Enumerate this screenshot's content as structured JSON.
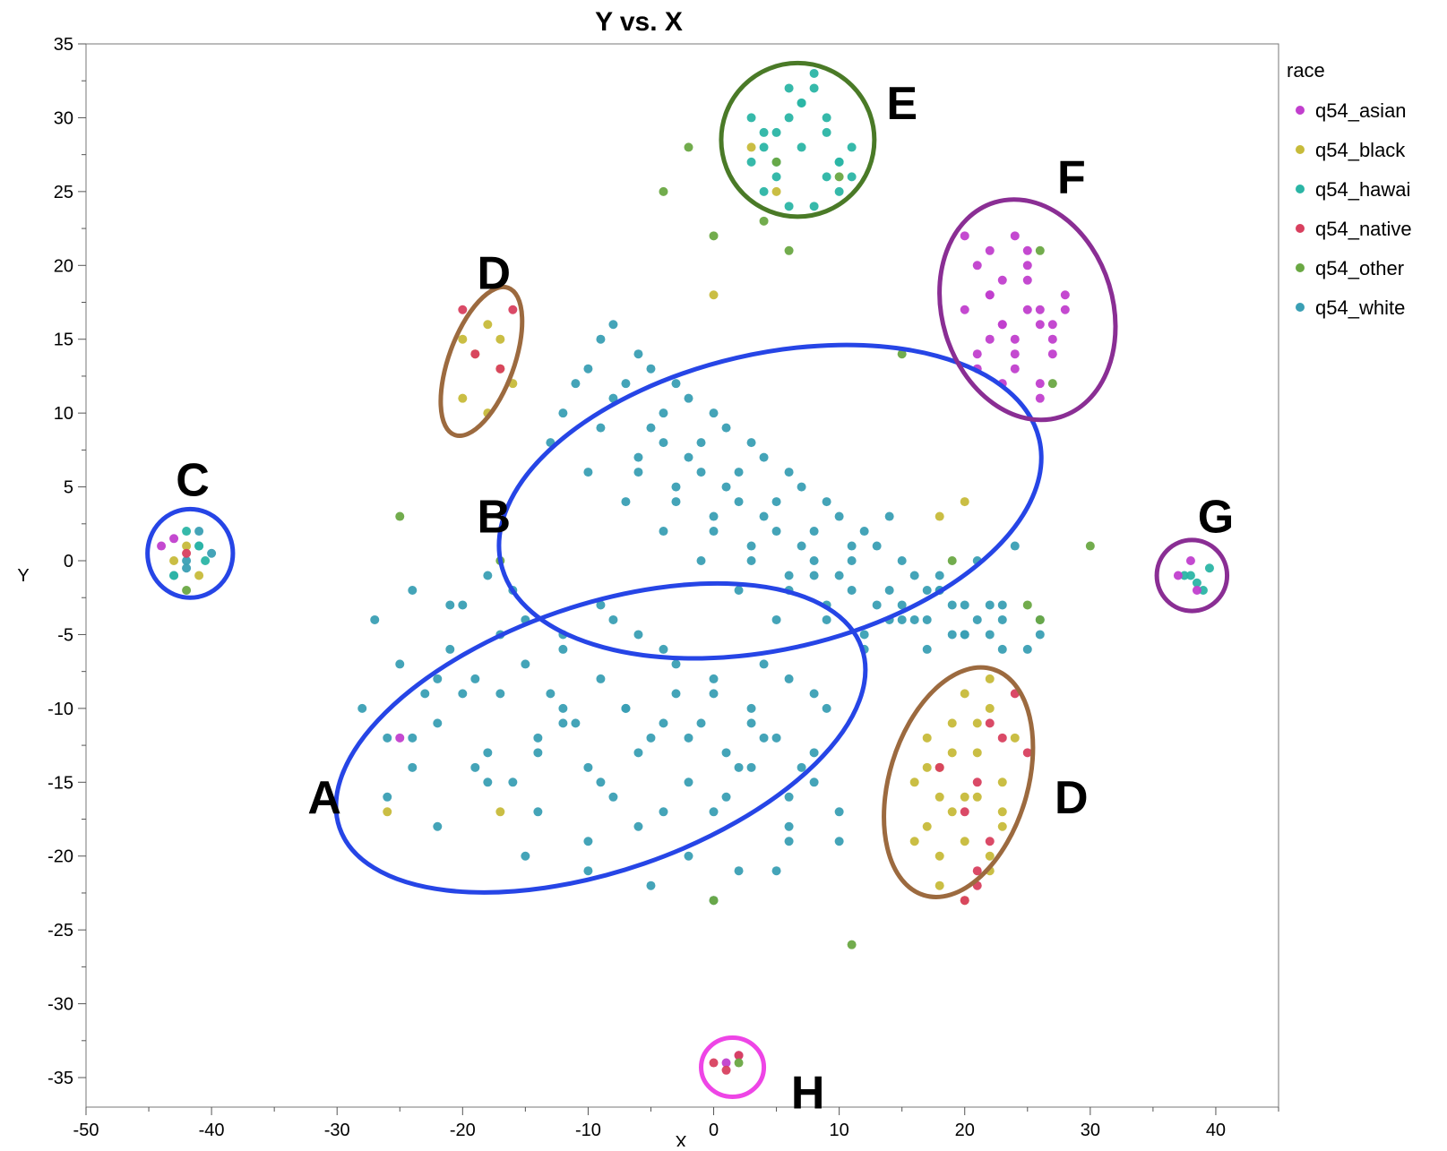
{
  "chart_data": {
    "type": "scatter",
    "title": "Y vs. X",
    "xlabel": "X",
    "ylabel": "Y",
    "xlim": [
      -50,
      45
    ],
    "ylim": [
      -37,
      35
    ],
    "x_ticks": [
      -50,
      -40,
      -30,
      -20,
      -10,
      0,
      10,
      20,
      30,
      40
    ],
    "y_ticks": [
      35,
      30,
      25,
      20,
      15,
      10,
      5,
      0,
      -5,
      -10,
      -15,
      -20,
      -25,
      -30,
      -35
    ],
    "grid": false,
    "legend": {
      "title": "race",
      "placement": "right",
      "entries": [
        "q54_asian",
        "q54_black",
        "q54_hawai",
        "q54_native",
        "q54_other",
        "q54_white"
      ]
    },
    "colors": {
      "q54_asian": "#c13fcd",
      "q54_black": "#c7bb3a",
      "q54_hawai": "#2bb5a5",
      "q54_native": "#d8405f",
      "q54_other": "#6aa843",
      "q54_white": "#3a9fb4"
    },
    "series": [
      {
        "name": "q54_white",
        "x": [
          -28,
          -26,
          -24,
          -22,
          -20,
          -18,
          -16,
          -14,
          -12,
          -10,
          -8,
          -6,
          -4,
          -2,
          0,
          2,
          4,
          6,
          8,
          -25,
          -23,
          -21,
          -19,
          -17,
          -15,
          -13,
          -11,
          -9,
          -7,
          -5,
          -3,
          -1,
          1,
          3,
          5,
          7,
          -27,
          -24,
          -21,
          -18,
          -15,
          -12,
          -9,
          -6,
          -3,
          0,
          3,
          6,
          9,
          -26,
          -22,
          -18,
          -14,
          -10,
          -6,
          -2,
          2,
          6,
          10,
          -20,
          -16,
          -12,
          -8,
          -4,
          0,
          4,
          8,
          -24,
          -19,
          -14,
          -9,
          -4,
          1,
          6,
          -22,
          -17,
          -12,
          -7,
          -2,
          3,
          8,
          -15,
          -10,
          -5,
          0,
          5,
          10,
          -42,
          -41,
          -43,
          -40,
          -42,
          -41,
          -13,
          -10,
          -7,
          -4,
          -1,
          2,
          5,
          8,
          11,
          14,
          17,
          20,
          23,
          26,
          -12,
          -9,
          -6,
          -3,
          0,
          3,
          6,
          9,
          12,
          15,
          18,
          21,
          24,
          -11,
          -8,
          -5,
          -2,
          1,
          4,
          7,
          10,
          13,
          16,
          19,
          22,
          -10,
          -7,
          -4,
          -1,
          2,
          5,
          8,
          11,
          14,
          17,
          20,
          23,
          26,
          -9,
          -6,
          -3,
          0,
          3,
          6,
          9,
          12,
          15,
          18,
          21,
          -8,
          -5,
          -2,
          1,
          4,
          7,
          10,
          13,
          16,
          19,
          22,
          25,
          -6,
          -3,
          0,
          3,
          6,
          9,
          12,
          15,
          18,
          -4,
          -1,
          2,
          5,
          8,
          11,
          14,
          17,
          20,
          23
        ],
        "y": [
          -10,
          -12,
          -14,
          -11,
          -9,
          -13,
          -15,
          -12,
          -10,
          -14,
          -16,
          -13,
          -11,
          -15,
          -17,
          -14,
          -12,
          -16,
          -13,
          -7,
          -9,
          -6,
          -8,
          -5,
          -7,
          -9,
          -11,
          -8,
          -10,
          -12,
          -9,
          -11,
          -13,
          -10,
          -12,
          -14,
          -4,
          -2,
          -3,
          -1,
          -4,
          -6,
          -3,
          -5,
          -7,
          -9,
          -11,
          -8,
          -10,
          -16,
          -18,
          -15,
          -17,
          -19,
          -18,
          -20,
          -21,
          -19,
          -17,
          -3,
          -2,
          -5,
          -4,
          -6,
          -8,
          -7,
          -9,
          -12,
          -14,
          -13,
          -15,
          -17,
          -16,
          -18,
          -8,
          -9,
          -11,
          -10,
          -12,
          -14,
          -15,
          -20,
          -21,
          -22,
          -23,
          -21,
          -19,
          0,
          1,
          -1,
          0.5,
          -0.5,
          2,
          8,
          6,
          4,
          2,
          0,
          -2,
          -4,
          -1,
          1,
          3,
          -2,
          -3,
          -4,
          -5,
          10,
          9,
          7,
          5,
          3,
          1,
          -1,
          -3,
          -5,
          -4,
          -2,
          0,
          1,
          12,
          11,
          9,
          7,
          5,
          3,
          1,
          -1,
          -3,
          -4,
          -5,
          -3,
          13,
          12,
          10,
          8,
          6,
          4,
          2,
          0,
          -2,
          -4,
          -5,
          -6,
          -4,
          15,
          14,
          12,
          10,
          8,
          6,
          4,
          2,
          0,
          -2,
          -4,
          16,
          13,
          11,
          9,
          7,
          5,
          3,
          1,
          -1,
          -3,
          -5,
          -6,
          6,
          4,
          2,
          0,
          -2,
          -4,
          -6,
          -3,
          -1,
          8,
          6,
          4,
          2,
          0,
          -2,
          -4,
          -6,
          -5,
          -3
        ]
      },
      {
        "name": "q54_hawai",
        "x": [
          3,
          4,
          5,
          6,
          7,
          8,
          9,
          10,
          11,
          4,
          5,
          6,
          7,
          8,
          9,
          10,
          3,
          5,
          7,
          9,
          11,
          6,
          8,
          4,
          10,
          37.5,
          38.5,
          39,
          38,
          39.5,
          -42,
          -41,
          -40.5,
          -43
        ],
        "y": [
          27,
          28,
          29,
          30,
          31,
          32,
          26,
          27,
          28,
          25,
          26,
          24,
          31,
          33,
          29,
          25,
          30,
          27,
          28,
          30,
          26,
          32,
          24,
          29,
          27,
          -1,
          -1.5,
          -2,
          -1,
          -0.5,
          2,
          1,
          0,
          -1
        ]
      },
      {
        "name": "q54_black",
        "x": [
          -20,
          -19,
          -18,
          -17,
          -16,
          -20,
          -18,
          -17,
          17,
          18,
          19,
          20,
          21,
          22,
          23,
          24,
          17,
          18,
          19,
          20,
          21,
          22,
          23,
          16,
          18,
          20,
          22,
          17,
          19,
          21,
          23,
          16,
          18,
          20,
          22,
          -41,
          -42,
          -43,
          0,
          5,
          3,
          18,
          20,
          -26,
          -17
        ],
        "y": [
          15,
          14,
          16,
          13,
          12,
          11,
          10,
          15,
          -12,
          -14,
          -11,
          -16,
          -13,
          -10,
          -15,
          -12,
          -18,
          -20,
          -17,
          -19,
          -16,
          -21,
          -18,
          -15,
          -22,
          -23,
          -20,
          -14,
          -13,
          -11,
          -17,
          -19,
          -16,
          -9,
          -8,
          -1,
          1,
          0,
          18,
          25,
          28,
          3,
          4,
          -17,
          -17
        ]
      },
      {
        "name": "q54_asian",
        "x": [
          20,
          21,
          22,
          23,
          24,
          25,
          26,
          27,
          20,
          22,
          24,
          26,
          28,
          21,
          23,
          25,
          27,
          22,
          24,
          26,
          23,
          25,
          21,
          27,
          24,
          22,
          26,
          23,
          25,
          28,
          38,
          37,
          38.5,
          -43,
          -44,
          1,
          2,
          -25
        ],
        "y": [
          22,
          20,
          18,
          16,
          14,
          19,
          17,
          15,
          17,
          15,
          13,
          16,
          18,
          14,
          12,
          20,
          14,
          21,
          22,
          12,
          19,
          17,
          13,
          16,
          15,
          18,
          11,
          16,
          21,
          17,
          0,
          -1,
          -2,
          1.5,
          1,
          -34,
          -33.5,
          -12
        ]
      },
      {
        "name": "q54_native",
        "x": [
          -20,
          -19,
          -17,
          -16,
          22,
          23,
          24,
          21,
          20,
          18,
          22,
          21,
          25,
          20,
          -42,
          0,
          1,
          2,
          21
        ],
        "y": [
          17,
          14,
          13,
          17,
          -11,
          -12,
          -9,
          -15,
          -17,
          -14,
          -19,
          -21,
          -13,
          -23,
          0.5,
          -34,
          -34.5,
          -33.5,
          -22
        ]
      },
      {
        "name": "q54_other",
        "x": [
          -2,
          -4,
          0,
          4,
          6,
          10,
          5,
          15,
          26,
          27,
          30,
          -42,
          -25,
          -17,
          11,
          0,
          2,
          19,
          25,
          26
        ],
        "y": [
          28,
          25,
          22,
          23,
          21,
          26,
          27,
          14,
          21,
          12,
          1,
          -2,
          3,
          0,
          -26,
          -23,
          -34,
          0,
          -3,
          -4
        ]
      }
    ],
    "annotations": [
      {
        "label": "A",
        "cx": -9,
        "cy": -12,
        "rx": 22,
        "ry": 9,
        "angle": -19,
        "color": "#2645e6",
        "label_x": -31,
        "label_y": -16
      },
      {
        "label": "B",
        "cx": 4.5,
        "cy": 4,
        "rx": 22,
        "ry": 10,
        "angle": -13,
        "color": "#2645e6",
        "label_x": -17.5,
        "label_y": 3
      },
      {
        "label": "C",
        "cx": -41.7,
        "cy": 0.5,
        "rx": 3.4,
        "ry": 3.0,
        "angle": 0,
        "color": "#2645e6",
        "label_x": -41.5,
        "label_y": 5.5
      },
      {
        "label": "D",
        "cx": -18.5,
        "cy": 13.5,
        "rx": 2.6,
        "ry": 5.3,
        "angle": 20,
        "color": "#9c6a3f",
        "label_x": -17.5,
        "label_y": 19.5
      },
      {
        "label": "D",
        "cx": 19.5,
        "cy": -15,
        "rx": 5.5,
        "ry": 8,
        "angle": 17,
        "color": "#9c6a3f",
        "label_x": 28.5,
        "label_y": -16
      },
      {
        "label": "E",
        "cx": 6.7,
        "cy": 28.5,
        "rx": 6.1,
        "ry": 5.2,
        "angle": 0,
        "color": "#4a7a27",
        "label_x": 15,
        "label_y": 31
      },
      {
        "label": "F",
        "cx": 25,
        "cy": 17,
        "rx": 6.8,
        "ry": 7.6,
        "angle": -17,
        "color": "#8a2e94",
        "label_x": 28.5,
        "label_y": 26
      },
      {
        "label": "G",
        "cx": 38.1,
        "cy": -1,
        "rx": 2.8,
        "ry": 2.4,
        "angle": 0,
        "color": "#8a2e94",
        "label_x": 40,
        "label_y": 3
      },
      {
        "label": "H",
        "cx": 1.5,
        "cy": -34.3,
        "rx": 2.5,
        "ry": 2.0,
        "angle": 0,
        "color": "#ee45e6",
        "label_x": 7.5,
        "label_y": -36
      }
    ]
  }
}
